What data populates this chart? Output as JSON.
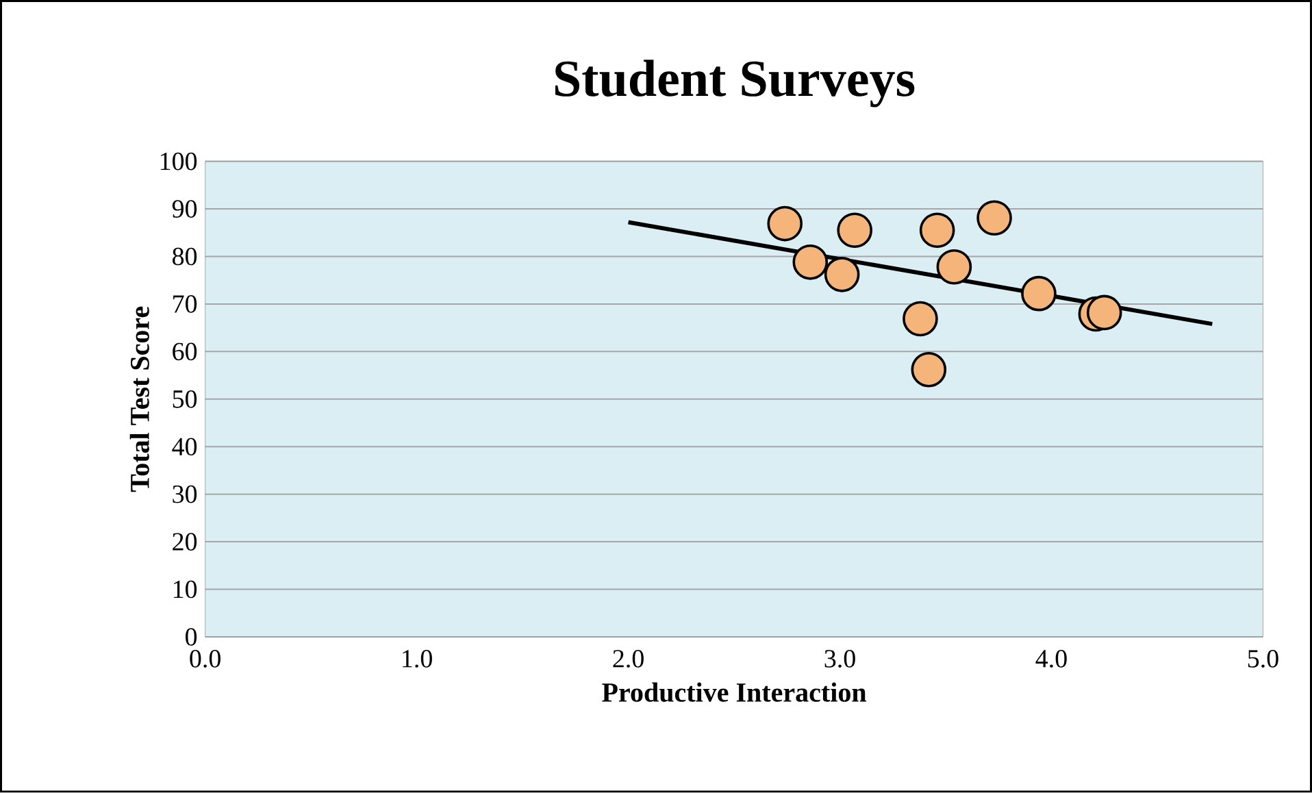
{
  "chart_data": {
    "type": "scatter",
    "title": "Student Surveys",
    "xlabel": "Productive Interaction",
    "ylabel": "Total Test Score",
    "xlim": [
      0,
      5
    ],
    "ylim": [
      0,
      100
    ],
    "xticks": [
      {
        "value": 0,
        "label": "0.0"
      },
      {
        "value": 1,
        "label": "1.0"
      },
      {
        "value": 2,
        "label": "2.0"
      },
      {
        "value": 3,
        "label": "3.0"
      },
      {
        "value": 4,
        "label": "4.0"
      },
      {
        "value": 5,
        "label": "5.0"
      }
    ],
    "yticks": [
      0,
      10,
      20,
      30,
      40,
      50,
      60,
      70,
      80,
      90,
      100
    ],
    "grid": "y",
    "legend": false,
    "series": [
      {
        "color": "#f5b47a",
        "marker": "circle",
        "x": [
          2.74,
          2.86,
          3.07,
          3.01,
          3.46,
          3.54,
          3.73,
          3.38,
          3.42,
          3.94,
          4.21,
          4.25
        ],
        "values": [
          86.9,
          78.8,
          85.5,
          76.2,
          85.5,
          77.8,
          88.1,
          66.9,
          56.2,
          72.2,
          67.9,
          68.2
        ]
      },
      {
        "type": "line",
        "color": "#000000",
        "x": [
          2.0,
          4.76
        ],
        "values": [
          87.2,
          65.8
        ]
      }
    ]
  }
}
